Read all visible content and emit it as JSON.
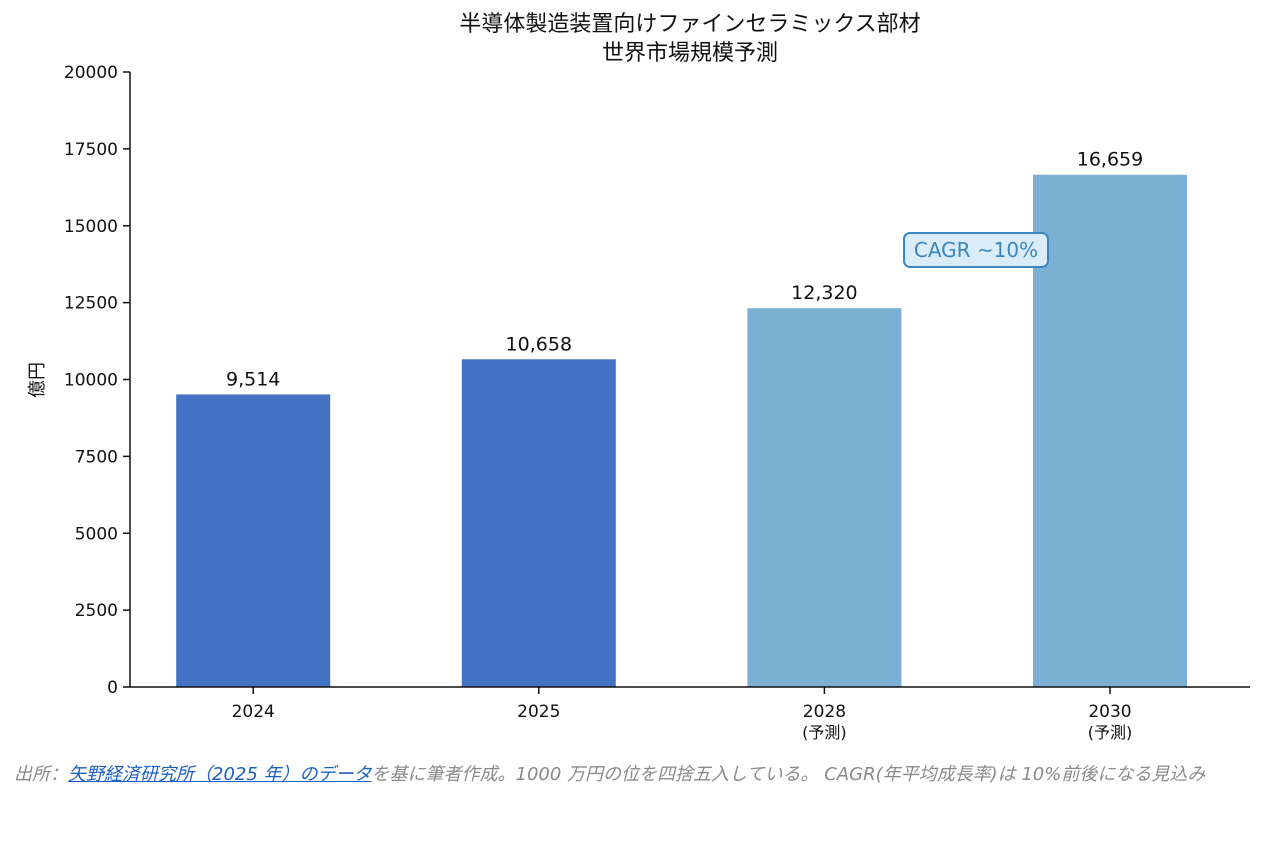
{
  "chart_data": {
    "type": "bar",
    "title_lines": [
      "半導体製造装置向けファインセラミックス部材",
      "世界市場規模予測"
    ],
    "xlabel": "",
    "ylabel": "億円",
    "ylim": [
      0,
      20000
    ],
    "yticks": [
      0,
      2500,
      5000,
      7500,
      10000,
      12500,
      15000,
      17500,
      20000
    ],
    "categories": [
      {
        "label": "2024",
        "sub": ""
      },
      {
        "label": "2025",
        "sub": ""
      },
      {
        "label": "2028",
        "sub": "(予測)"
      },
      {
        "label": "2030",
        "sub": "(予測)"
      }
    ],
    "values": [
      9514,
      10658,
      12320,
      16659
    ],
    "value_labels": [
      "9,514",
      "10,658",
      "12,320",
      "16,659"
    ],
    "bar_colors": [
      "#4472c4",
      "#4472c4",
      "#7bafd4",
      "#7bafd4"
    ],
    "annotation": "CAGR ~10%",
    "annotation_colors": {
      "text": "#3a86c0",
      "border": "#3a86c0",
      "fill": "#d9ecf8"
    },
    "grid": false,
    "legend": "none"
  },
  "caption": {
    "prefix": "出所：",
    "link_text": "矢野経済研究所（2025 年）のデータ",
    "suffix": "を基に筆者作成。1000 万円の位を四捨五入している。 CAGR(年平均成長率)は 10%前後になる見込み"
  }
}
